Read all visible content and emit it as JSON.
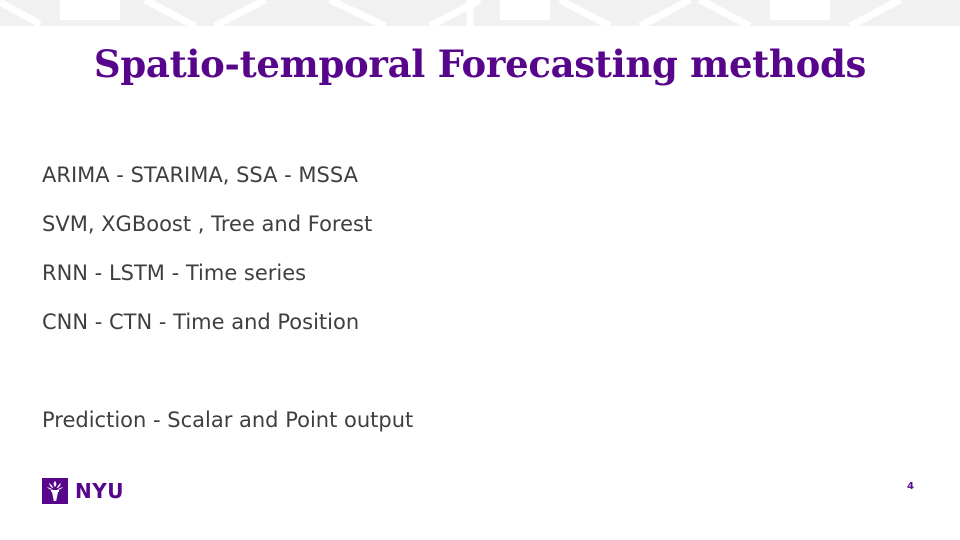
{
  "slide": {
    "title": "Spatio-temporal Forecasting methods",
    "bullets": [
      "ARIMA - STARIMA,  SSA - MSSA",
      "SVM,  XGBoost , Tree and Forest",
      "RNN - LSTM - Time series",
      "CNN - CTN - Time and Position",
      "Prediction - Scalar and Point output"
    ],
    "logo_text": "NYU",
    "logo_icon": "torch-icon",
    "page_number": "4"
  },
  "colors": {
    "accent": "#57068c",
    "body_text": "#3f3f3f",
    "pattern": "#f1f1f1"
  }
}
